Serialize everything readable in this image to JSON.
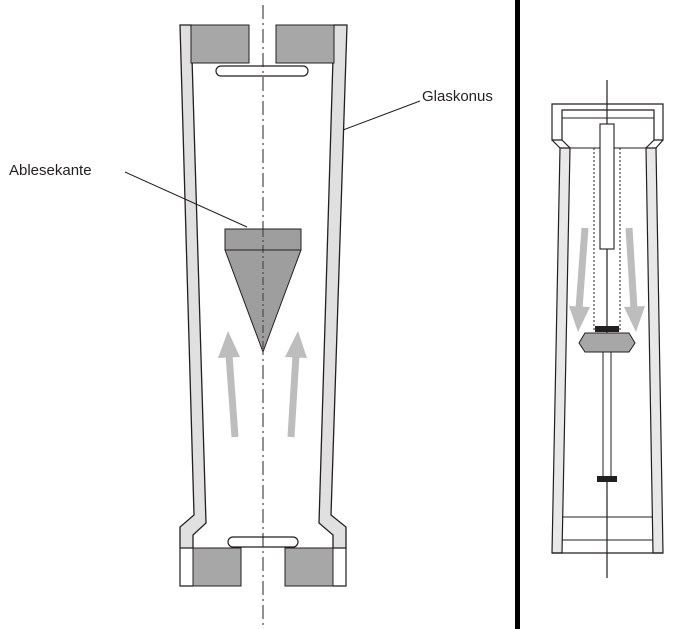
{
  "labels": {
    "reading_edge": "Ablesekante",
    "glass_cone": "Glaskonus"
  },
  "colors": {
    "outline": "#231f20",
    "fitting_gray": "#a7a7a7",
    "float_gray": "#9e9e9e",
    "arrow_gray": "#bdbdbd",
    "divider": "#000000"
  }
}
